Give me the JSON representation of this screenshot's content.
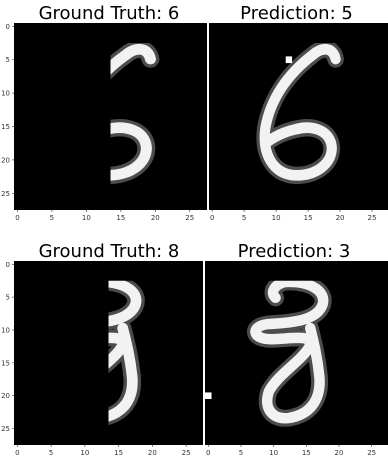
{
  "figure": {
    "panels": [
      {
        "title": "Ground Truth: 6",
        "digit": "6",
        "xticks": [
          "0",
          "5",
          "10",
          "15",
          "20",
          "25"
        ],
        "yticks": [
          "0",
          "5",
          "10",
          "15",
          "20",
          "25"
        ],
        "added_dot": null
      },
      {
        "title": "Prediction: 5",
        "digit": "6",
        "xticks": [
          "0",
          "5",
          "10",
          "15",
          "20",
          "25"
        ],
        "yticks": [],
        "added_dot": {
          "col": 12,
          "row": 5
        }
      },
      {
        "title": "Ground Truth: 8",
        "digit": "8",
        "xticks": [
          "0",
          "5",
          "10",
          "15",
          "20",
          "25"
        ],
        "yticks": [
          "0",
          "5",
          "10",
          "15",
          "20",
          "25"
        ],
        "added_dot": null
      },
      {
        "title": "Prediction: 3",
        "digit": "8",
        "xticks": [
          "0",
          "5",
          "10",
          "15",
          "20",
          "25"
        ],
        "yticks": [],
        "added_dot": {
          "col": 0,
          "row": 20
        }
      }
    ],
    "image_size": 28,
    "colors": {
      "background": "#000000",
      "stroke": "#f2f2f2",
      "halo": "#8a8a8a",
      "tick": "#333333"
    }
  }
}
